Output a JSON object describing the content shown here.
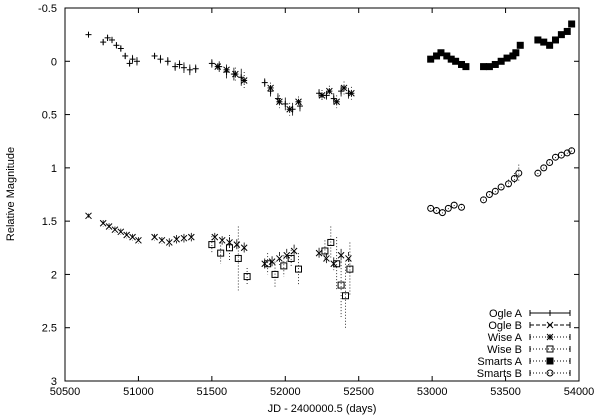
{
  "chart_data": {
    "type": "scatter",
    "xlabel": "JD - 2400000.5 (days)",
    "ylabel": "Relative Magnitude",
    "xlim": [
      50500,
      54000
    ],
    "ylim": [
      3,
      -0.5
    ],
    "y_inverted": true,
    "grid": false,
    "legend_position": "bottom-right",
    "x_ticks": [
      {
        "value": 50500,
        "label": "50500"
      },
      {
        "value": 51000,
        "label": "51000"
      },
      {
        "value": 51500,
        "label": "51500"
      },
      {
        "value": 52000,
        "label": "52000"
      },
      {
        "value": 52500,
        "label": "52500"
      },
      {
        "value": 53000,
        "label": "53000"
      },
      {
        "value": 53500,
        "label": "53500"
      },
      {
        "value": 54000,
        "label": "54000"
      }
    ],
    "y_ticks": [
      {
        "value": -0.5,
        "label": "-0.5"
      },
      {
        "value": 0,
        "label": "0"
      },
      {
        "value": 0.5,
        "label": "0.5"
      },
      {
        "value": 1,
        "label": "1"
      },
      {
        "value": 1.5,
        "label": "1.5"
      },
      {
        "value": 2,
        "label": "2"
      },
      {
        "value": 2.5,
        "label": "2.5"
      },
      {
        "value": 3,
        "label": "3"
      }
    ],
    "series": [
      {
        "name": "Ogle A",
        "marker": "plus",
        "line_style": "solid",
        "color": "#000000",
        "points": [
          [
            50660,
            -0.25,
            0.02
          ],
          [
            50760,
            -0.18,
            0.03
          ],
          [
            50790,
            -0.22,
            0.03
          ],
          [
            50820,
            -0.2,
            0.03
          ],
          [
            50850,
            -0.15,
            0.03
          ],
          [
            50880,
            -0.12,
            0.03
          ],
          [
            50910,
            -0.05,
            0.03
          ],
          [
            50940,
            0.02,
            0.03
          ],
          [
            50960,
            -0.02,
            0.04
          ],
          [
            50990,
            0.0,
            0.04
          ],
          [
            51110,
            -0.05,
            0.03
          ],
          [
            51150,
            -0.02,
            0.04
          ],
          [
            51200,
            0.0,
            0.04
          ],
          [
            51250,
            0.05,
            0.04
          ],
          [
            51280,
            0.03,
            0.04
          ],
          [
            51310,
            0.06,
            0.05
          ],
          [
            51350,
            0.08,
            0.05
          ],
          [
            51390,
            0.07,
            0.04
          ],
          [
            51500,
            0.02,
            0.04
          ],
          [
            51550,
            0.05,
            0.05
          ],
          [
            51600,
            0.1,
            0.06
          ],
          [
            51650,
            0.12,
            0.06
          ],
          [
            51700,
            0.15,
            0.08
          ],
          [
            51860,
            0.2,
            0.04
          ],
          [
            51900,
            0.28,
            0.05
          ],
          [
            51950,
            0.35,
            0.05
          ],
          [
            52000,
            0.4,
            0.06
          ],
          [
            52050,
            0.45,
            0.06
          ],
          [
            52100,
            0.42,
            0.05
          ],
          [
            52230,
            0.3,
            0.04
          ],
          [
            52280,
            0.32,
            0.04
          ],
          [
            52330,
            0.35,
            0.05
          ],
          [
            52380,
            0.28,
            0.05
          ],
          [
            52430,
            0.3,
            0.05
          ]
        ]
      },
      {
        "name": "Ogle B",
        "marker": "cross",
        "line_style": "dashed",
        "color": "#000000",
        "points": [
          [
            50660,
            1.45,
            0.02
          ],
          [
            50760,
            1.52,
            0.03
          ],
          [
            50800,
            1.55,
            0.03
          ],
          [
            50840,
            1.58,
            0.03
          ],
          [
            50880,
            1.6,
            0.03
          ],
          [
            50920,
            1.63,
            0.03
          ],
          [
            50960,
            1.65,
            0.03
          ],
          [
            51000,
            1.68,
            0.03
          ],
          [
            51110,
            1.65,
            0.03
          ],
          [
            51160,
            1.68,
            0.03
          ],
          [
            51210,
            1.7,
            0.04
          ],
          [
            51260,
            1.67,
            0.04
          ],
          [
            51310,
            1.66,
            0.04
          ],
          [
            51360,
            1.65,
            0.04
          ],
          [
            51520,
            1.65,
            0.04
          ],
          [
            51570,
            1.68,
            0.04
          ],
          [
            51620,
            1.7,
            0.05
          ],
          [
            51670,
            1.72,
            0.05
          ],
          [
            51720,
            1.75,
            0.05
          ],
          [
            51860,
            1.9,
            0.05
          ],
          [
            51910,
            1.88,
            0.05
          ],
          [
            51960,
            1.85,
            0.06
          ],
          [
            52010,
            1.82,
            0.06
          ],
          [
            52060,
            1.78,
            0.06
          ],
          [
            52230,
            1.8,
            0.05
          ],
          [
            52280,
            1.85,
            0.05
          ],
          [
            52330,
            1.9,
            0.06
          ],
          [
            52380,
            1.82,
            0.06
          ],
          [
            52430,
            1.85,
            0.06
          ]
        ]
      },
      {
        "name": "Wise A",
        "marker": "star",
        "line_style": "dotted",
        "color": "#000000",
        "points": [
          [
            51540,
            0.05,
            0.03
          ],
          [
            51600,
            0.08,
            0.05
          ],
          [
            51660,
            0.12,
            0.06
          ],
          [
            51720,
            0.18,
            0.08
          ],
          [
            51900,
            0.25,
            0.05
          ],
          [
            51960,
            0.38,
            0.06
          ],
          [
            52030,
            0.45,
            0.06
          ],
          [
            52090,
            0.38,
            0.05
          ],
          [
            52250,
            0.32,
            0.05
          ],
          [
            52300,
            0.28,
            0.05
          ],
          [
            52350,
            0.38,
            0.06
          ],
          [
            52400,
            0.25,
            0.06
          ],
          [
            52450,
            0.3,
            0.06
          ]
        ]
      },
      {
        "name": "Wise B",
        "marker": "square-open",
        "line_style": "dotted",
        "color": "#000000",
        "points": [
          [
            51500,
            1.72,
            0.08
          ],
          [
            51560,
            1.8,
            0.1
          ],
          [
            51620,
            1.75,
            0.12
          ],
          [
            51680,
            1.85,
            0.3
          ],
          [
            51740,
            2.02,
            0.08
          ],
          [
            51880,
            1.9,
            0.1
          ],
          [
            51930,
            2.0,
            0.12
          ],
          [
            51990,
            1.92,
            0.1
          ],
          [
            52040,
            1.85,
            0.08
          ],
          [
            52090,
            1.95,
            0.15
          ],
          [
            52270,
            1.78,
            0.1
          ],
          [
            52310,
            1.7,
            0.15
          ],
          [
            52350,
            1.9,
            0.25
          ],
          [
            52380,
            2.1,
            0.3
          ],
          [
            52410,
            2.2,
            0.3
          ],
          [
            52440,
            1.95,
            0.25
          ]
        ]
      },
      {
        "name": "Smarts A",
        "marker": "square-filled",
        "line_style": "dotted",
        "color": "#000000",
        "points": [
          [
            52990,
            -0.02,
            0.02
          ],
          [
            53030,
            -0.05,
            0.02
          ],
          [
            53060,
            -0.08,
            0.02
          ],
          [
            53100,
            -0.05,
            0.02
          ],
          [
            53130,
            -0.02,
            0.02
          ],
          [
            53160,
            0.0,
            0.02
          ],
          [
            53200,
            0.03,
            0.02
          ],
          [
            53230,
            0.05,
            0.02
          ],
          [
            53350,
            0.05,
            0.02
          ],
          [
            53390,
            0.05,
            0.02
          ],
          [
            53430,
            0.03,
            0.02
          ],
          [
            53470,
            0.0,
            0.02
          ],
          [
            53510,
            -0.03,
            0.02
          ],
          [
            53550,
            -0.05,
            0.02
          ],
          [
            53570,
            -0.08,
            0.02
          ],
          [
            53600,
            -0.15,
            0.02
          ],
          [
            53720,
            -0.2,
            0.02
          ],
          [
            53760,
            -0.18,
            0.02
          ],
          [
            53800,
            -0.15,
            0.02
          ],
          [
            53840,
            -0.2,
            0.02
          ],
          [
            53880,
            -0.25,
            0.02
          ],
          [
            53920,
            -0.28,
            0.02
          ],
          [
            53950,
            -0.35,
            0.02
          ]
        ]
      },
      {
        "name": "Smarts B",
        "marker": "circle-open",
        "line_style": "dotted",
        "color": "#000000",
        "points": [
          [
            52990,
            1.38,
            0.03
          ],
          [
            53030,
            1.4,
            0.03
          ],
          [
            53070,
            1.42,
            0.03
          ],
          [
            53110,
            1.38,
            0.03
          ],
          [
            53150,
            1.35,
            0.03
          ],
          [
            53200,
            1.37,
            0.03
          ],
          [
            53350,
            1.3,
            0.03
          ],
          [
            53390,
            1.25,
            0.03
          ],
          [
            53430,
            1.22,
            0.03
          ],
          [
            53470,
            1.18,
            0.03
          ],
          [
            53520,
            1.15,
            0.04
          ],
          [
            53560,
            1.1,
            0.05
          ],
          [
            53590,
            1.05,
            0.08
          ],
          [
            53720,
            1.05,
            0.03
          ],
          [
            53760,
            1.0,
            0.03
          ],
          [
            53800,
            0.95,
            0.03
          ],
          [
            53840,
            0.9,
            0.03
          ],
          [
            53880,
            0.88,
            0.03
          ],
          [
            53920,
            0.86,
            0.03
          ],
          [
            53950,
            0.84,
            0.03
          ]
        ]
      }
    ]
  }
}
